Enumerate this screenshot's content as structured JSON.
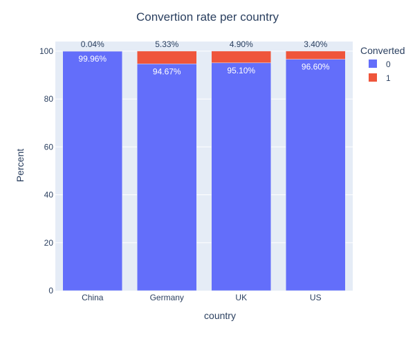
{
  "chart_data": {
    "type": "bar",
    "stacked": true,
    "title": "Convertion rate per country",
    "xlabel": "country",
    "ylabel": "Percent",
    "categories": [
      "China",
      "Germany",
      "UK",
      "US"
    ],
    "ylim": [
      0,
      100
    ],
    "yticks": [
      0,
      20,
      40,
      60,
      80,
      100
    ],
    "grid": true,
    "legend": {
      "title": "Converted",
      "position": "top-right"
    },
    "series": [
      {
        "name": "0",
        "color": "#636efa",
        "values": [
          99.96,
          94.67,
          95.1,
          96.6
        ],
        "labels": [
          "99.96%",
          "94.67%",
          "95.10%",
          "96.60%"
        ]
      },
      {
        "name": "1",
        "color": "#ef553b",
        "values": [
          0.04,
          5.33,
          4.9,
          3.4
        ],
        "labels": [
          "0.04%",
          "5.33%",
          "4.90%",
          "3.40%"
        ]
      }
    ],
    "plot_bg": "#e5ecf6"
  }
}
